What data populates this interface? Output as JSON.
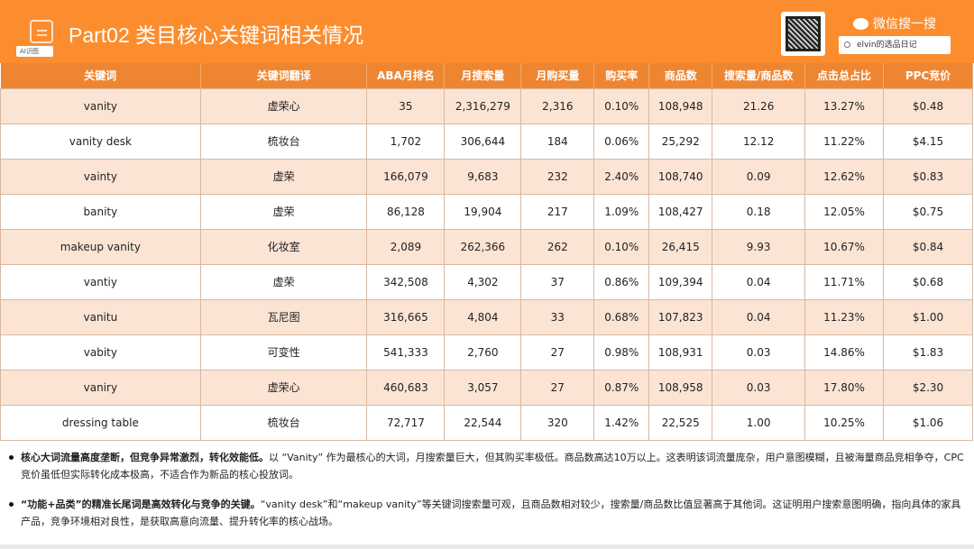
{
  "header": {
    "title": "Part02 类目核心关键词相关情况",
    "ai_badge": "AI识图",
    "wechat_label": "微信搜一搜",
    "search_text": "elvin的选品日记"
  },
  "colors": {
    "header": "#FB8D2F",
    "table_header": "#EE8631",
    "row_alt": "#FCE4D5"
  },
  "table": {
    "columns": [
      "关键词",
      "关键词翻译",
      "ABA月排名",
      "月搜索量",
      "月购买量",
      "购买率",
      "商品数",
      "搜索量/商品数",
      "点击总占比",
      "PPC竞价"
    ],
    "rows": [
      [
        "vanity",
        "虚荣心",
        "35",
        "2,316,279",
        "2,316",
        "0.10%",
        "108,948",
        "21.26",
        "13.27%",
        "$0.48"
      ],
      [
        "vanity desk",
        "梳妆台",
        "1,702",
        "306,644",
        "184",
        "0.06%",
        "25,292",
        "12.12",
        "11.22%",
        "$4.15"
      ],
      [
        "vainty",
        "虚荣",
        "166,079",
        "9,683",
        "232",
        "2.40%",
        "108,740",
        "0.09",
        "12.62%",
        "$0.83"
      ],
      [
        "banity",
        "虚荣",
        "86,128",
        "19,904",
        "217",
        "1.09%",
        "108,427",
        "0.18",
        "12.05%",
        "$0.75"
      ],
      [
        "makeup vanity",
        "化妆室",
        "2,089",
        "262,366",
        "262",
        "0.10%",
        "26,415",
        "9.93",
        "10.67%",
        "$0.84"
      ],
      [
        "vantiy",
        "虚荣",
        "342,508",
        "4,302",
        "37",
        "0.86%",
        "109,394",
        "0.04",
        "11.71%",
        "$0.68"
      ],
      [
        "vanitu",
        "瓦尼图",
        "316,665",
        "4,804",
        "33",
        "0.68%",
        "107,823",
        "0.04",
        "11.23%",
        "$1.00"
      ],
      [
        "vabity",
        "可变性",
        "541,333",
        "2,760",
        "27",
        "0.98%",
        "108,931",
        "0.03",
        "14.86%",
        "$1.83"
      ],
      [
        "vaniry",
        "虚荣心",
        "460,683",
        "3,057",
        "27",
        "0.87%",
        "108,958",
        "0.03",
        "17.80%",
        "$2.30"
      ],
      [
        "dressing table",
        "梳妆台",
        "72,717",
        "22,544",
        "320",
        "1.42%",
        "22,525",
        "1.00",
        "10.25%",
        "$1.06"
      ]
    ]
  },
  "notes": [
    {
      "bold": "核心大词流量高度垄断，但竞争异常激烈，转化效能低。",
      "text": "以 “Vanity” 作为最核心的大词，月搜索量巨大，但其购买率极低。商品数高达10万以上。这表明该词流量庞杂，用户意图模糊，且被海量商品竞相争夺，CPC竞价虽低但实际转化成本极高，不适合作为新品的核心投放词。"
    },
    {
      "bold": "“功能+品类”的精准长尾词是高效转化与竞争的关键。",
      "text": "“vanity desk”和“makeup vanity”等关键词搜索量可观，且商品数相对较少，搜索量/商品数比值显著高于其他词。这证明用户搜索意图明确，指向具体的家具产品，竞争环境相对良性，是获取高意向流量、提升转化率的核心战场。"
    }
  ]
}
